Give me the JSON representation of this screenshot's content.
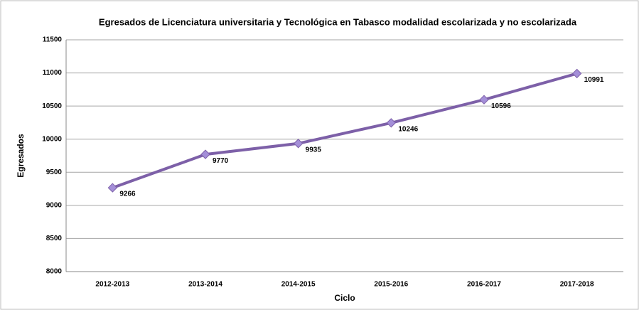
{
  "chart_data": {
    "type": "line",
    "title": "Egresados de Licenciatura universitaria y Tecnológica en Tabasco modalidad escolarizada y no escolarizada",
    "xlabel": "Ciclo",
    "ylabel": "Egresados",
    "categories": [
      "2012-2013",
      "2013-2014",
      "2014-2015",
      "2015-2016",
      "2016-2017",
      "2017-2018"
    ],
    "series": [
      {
        "name": "Egresados",
        "color": "#7d60a8",
        "values": [
          9266,
          9770,
          9935,
          10246,
          10596,
          10991
        ]
      }
    ],
    "ylim": [
      8000,
      11500
    ],
    "yticks": [
      8000,
      8500,
      9000,
      9500,
      10000,
      10500,
      11000,
      11500
    ],
    "grid": true
  }
}
